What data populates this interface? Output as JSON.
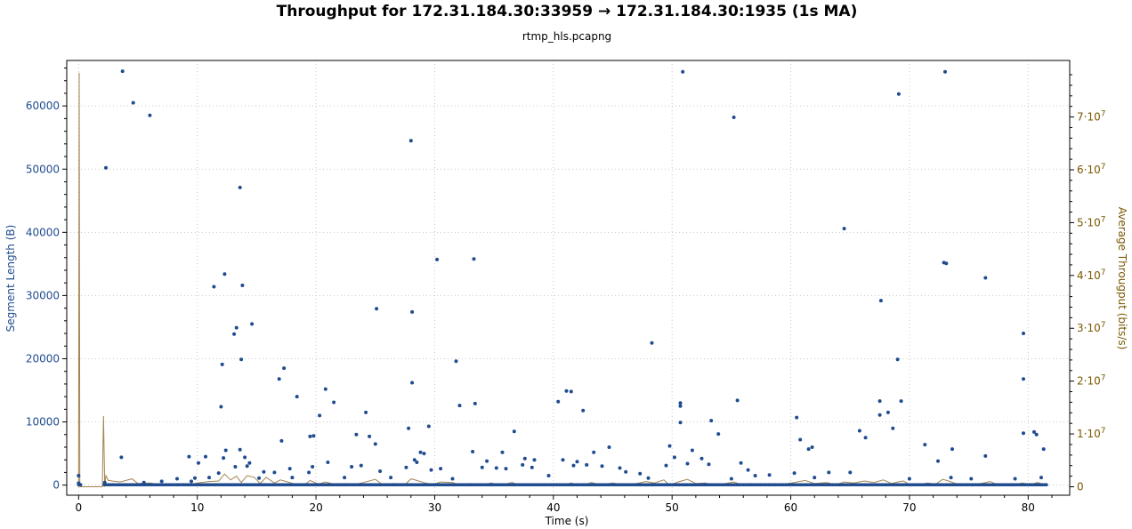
{
  "chart_data": {
    "type": "scatter",
    "title": "Throughput for 172.31.184.30:33959 → 172.31.184.30:1935 (1s MA)",
    "subtitle": "rtmp_hls.pcapng",
    "xlabel": "Time (s)",
    "ylabel": "Segment Length (B)",
    "y2label": "Average Througput (bits/s)",
    "xlim": [
      -1.0,
      83.5
    ],
    "ylim": [
      -1600,
      67200
    ],
    "y2lim": [
      -1600000,
      80700000
    ],
    "x_ticks": [
      0,
      10,
      20,
      30,
      40,
      50,
      60,
      70,
      80
    ],
    "x_tick_labels": [
      "0",
      "10",
      "20",
      "30",
      "40",
      "50",
      "60",
      "70",
      "80"
    ],
    "y_ticks": [
      0,
      10000,
      20000,
      30000,
      40000,
      50000,
      60000
    ],
    "y_tick_labels": [
      "0",
      "10000",
      "20000",
      "30000",
      "40000",
      "50000",
      "60000"
    ],
    "y2_ticks": [
      0,
      10000000,
      20000000,
      30000000,
      40000000,
      50000000,
      60000000,
      70000000
    ],
    "y2_tick_labels": [
      "0",
      "1·10",
      "2·10",
      "3·10",
      "4·10",
      "5·10",
      "6·10",
      "7·10"
    ],
    "y2_tick_exponent": "7",
    "grid": true,
    "colors": {
      "segments": "#1f4b8f",
      "throughput": "#a38450",
      "left_axis": "#1f4b8f",
      "right_axis": "#7a5800",
      "grid": "#c8c8c8"
    },
    "series": [
      {
        "points": [
          [
            0,
            1500
          ],
          [
            3.7,
            65500
          ],
          [
            4.6,
            60500
          ],
          [
            6.0,
            58500
          ],
          [
            2.3,
            50200
          ],
          [
            3.6,
            4400
          ],
          [
            9.3,
            4500
          ],
          [
            10.1,
            3500
          ],
          [
            10.7,
            4500
          ],
          [
            11.4,
            31400
          ],
          [
            12.1,
            19100
          ],
          [
            12.0,
            12400
          ],
          [
            12.3,
            33400
          ],
          [
            12.4,
            5500
          ],
          [
            12.2,
            4300
          ],
          [
            13.1,
            23900
          ],
          [
            13.3,
            24900
          ],
          [
            13.6,
            47100
          ],
          [
            13.7,
            19900
          ],
          [
            13.8,
            31600
          ],
          [
            13.6,
            5600
          ],
          [
            14.0,
            4400
          ],
          [
            14.2,
            3000
          ],
          [
            14.6,
            25500
          ],
          [
            14.4,
            3500
          ],
          [
            16.9,
            16800
          ],
          [
            17.3,
            18500
          ],
          [
            17.1,
            7000
          ],
          [
            18.4,
            14000
          ],
          [
            19.5,
            7700
          ],
          [
            19.8,
            7800
          ],
          [
            20.3,
            11000
          ],
          [
            20.8,
            15200
          ],
          [
            21.5,
            13100
          ],
          [
            23.4,
            8000
          ],
          [
            24.5,
            7700
          ],
          [
            24.2,
            11500
          ],
          [
            25.1,
            27900
          ],
          [
            25.0,
            6500
          ],
          [
            27.8,
            9000
          ],
          [
            28.0,
            54500
          ],
          [
            28.1,
            27400
          ],
          [
            28.1,
            16200
          ],
          [
            28.3,
            4000
          ],
          [
            29.1,
            5000
          ],
          [
            29.5,
            9300
          ],
          [
            30.2,
            35700
          ],
          [
            31.8,
            19600
          ],
          [
            32.1,
            12600
          ],
          [
            33.3,
            35800
          ],
          [
            33.4,
            12900
          ],
          [
            33.2,
            5300
          ],
          [
            34.4,
            3800
          ],
          [
            36.7,
            8500
          ],
          [
            37.6,
            4200
          ],
          [
            38.4,
            4000
          ],
          [
            40.4,
            13200
          ],
          [
            41.1,
            14900
          ],
          [
            41.5,
            14800
          ],
          [
            42.5,
            11800
          ],
          [
            43.4,
            5200
          ],
          [
            44.7,
            6000
          ],
          [
            48.3,
            22500
          ],
          [
            49.8,
            6200
          ],
          [
            50.7,
            13000
          ],
          [
            50.7,
            12500
          ],
          [
            50.7,
            9900
          ],
          [
            50.9,
            65400
          ],
          [
            51.7,
            5500
          ],
          [
            53.3,
            10200
          ],
          [
            53.9,
            8100
          ],
          [
            55.2,
            58200
          ],
          [
            55.5,
            13400
          ],
          [
            55.8,
            3500
          ],
          [
            60.5,
            10700
          ],
          [
            60.8,
            7200
          ],
          [
            61.5,
            5700
          ],
          [
            61.8,
            6000
          ],
          [
            64.5,
            40600
          ],
          [
            65.8,
            8600
          ],
          [
            66.3,
            7500
          ],
          [
            67.5,
            11100
          ],
          [
            67.6,
            29200
          ],
          [
            67.5,
            13300
          ],
          [
            68.2,
            11500
          ],
          [
            68.6,
            9000
          ],
          [
            69.1,
            61900
          ],
          [
            69.0,
            19900
          ],
          [
            69.3,
            13300
          ],
          [
            71.3,
            6400
          ],
          [
            72.9,
            35200
          ],
          [
            73.1,
            35100
          ],
          [
            73.0,
            65400
          ],
          [
            73.6,
            5700
          ],
          [
            76.4,
            32800
          ],
          [
            76.4,
            4600
          ],
          [
            79.6,
            24000
          ],
          [
            79.6,
            16800
          ],
          [
            79.6,
            8200
          ],
          [
            80.5,
            8400
          ],
          [
            80.7,
            8000
          ],
          [
            81.3,
            5700
          ],
          [
            81.1,
            1200
          ],
          [
            78.9,
            1000
          ],
          [
            75.2,
            1000
          ],
          [
            73.5,
            1200
          ],
          [
            72.4,
            3800
          ],
          [
            70.0,
            1000
          ],
          [
            65.0,
            2000
          ],
          [
            63.2,
            2000
          ],
          [
            62.0,
            1200
          ],
          [
            60.3,
            1900
          ],
          [
            58.2,
            1600
          ],
          [
            57.0,
            1500
          ],
          [
            56.4,
            2400
          ],
          [
            55.0,
            1000
          ],
          [
            53.1,
            3300
          ],
          [
            52.5,
            4200
          ],
          [
            51.3,
            3400
          ],
          [
            50.2,
            4400
          ],
          [
            49.5,
            3100
          ],
          [
            48.0,
            1100
          ],
          [
            47.3,
            1800
          ],
          [
            46.1,
            2100
          ],
          [
            45.6,
            2700
          ],
          [
            44.1,
            3000
          ],
          [
            42.8,
            3200
          ],
          [
            42.0,
            3700
          ],
          [
            41.7,
            3100
          ],
          [
            40.8,
            4000
          ],
          [
            39.6,
            1500
          ],
          [
            38.2,
            2800
          ],
          [
            37.4,
            3200
          ],
          [
            36.0,
            2600
          ],
          [
            35.7,
            5200
          ],
          [
            35.2,
            2700
          ],
          [
            34.0,
            2800
          ],
          [
            31.5,
            1000
          ],
          [
            30.5,
            2600
          ],
          [
            29.7,
            2400
          ],
          [
            28.8,
            5200
          ],
          [
            28.5,
            3600
          ],
          [
            27.6,
            2800
          ],
          [
            26.3,
            1200
          ],
          [
            25.4,
            2200
          ],
          [
            23.8,
            3100
          ],
          [
            23.0,
            2900
          ],
          [
            22.4,
            1200
          ],
          [
            21.0,
            3600
          ],
          [
            19.7,
            2900
          ],
          [
            19.4,
            2000
          ],
          [
            18.0,
            1200
          ],
          [
            17.8,
            2600
          ],
          [
            16.5,
            2000
          ],
          [
            15.6,
            2100
          ],
          [
            15.2,
            1100
          ],
          [
            13.2,
            2900
          ],
          [
            11.8,
            1900
          ],
          [
            11.0,
            1200
          ],
          [
            9.8,
            1100
          ],
          [
            9.5,
            600
          ],
          [
            8.3,
            1000
          ],
          [
            7.0,
            600
          ],
          [
            5.5,
            400
          ],
          [
            2.2,
            400
          ],
          [
            0.0,
            300
          ]
        ]
      },
      {
        "points": [
          [
            0.0,
            0
          ],
          [
            0.05,
            78400000
          ],
          [
            0.1,
            0
          ],
          [
            2.0,
            0
          ],
          [
            2.1,
            13400000
          ],
          [
            2.2,
            0
          ],
          [
            2.3,
            2100000
          ],
          [
            2.5,
            1200000
          ],
          [
            3.5,
            900000
          ],
          [
            4.5,
            1500000
          ],
          [
            5.0,
            600000
          ],
          [
            6.0,
            700000
          ],
          [
            7.0,
            300000
          ],
          [
            8.0,
            500000
          ],
          [
            9.0,
            200000
          ],
          [
            10.0,
            700000
          ],
          [
            11.0,
            1000000
          ],
          [
            11.8,
            1100000
          ],
          [
            12.3,
            2400000
          ],
          [
            12.8,
            1300000
          ],
          [
            13.3,
            2000000
          ],
          [
            13.7,
            800000
          ],
          [
            14.2,
            2100000
          ],
          [
            14.8,
            1800000
          ],
          [
            15.3,
            600000
          ],
          [
            15.8,
            1800000
          ],
          [
            16.5,
            700000
          ],
          [
            17.0,
            1300000
          ],
          [
            17.5,
            1000000
          ],
          [
            18.2,
            500000
          ],
          [
            19.0,
            300000
          ],
          [
            19.5,
            1200000
          ],
          [
            20.2,
            500000
          ],
          [
            20.8,
            900000
          ],
          [
            21.5,
            500000
          ],
          [
            22.5,
            600000
          ],
          [
            23.0,
            300000
          ],
          [
            24.0,
            800000
          ],
          [
            25.0,
            1400000
          ],
          [
            25.6,
            400000
          ],
          [
            26.5,
            600000
          ],
          [
            27.5,
            400000
          ],
          [
            28.0,
            1500000
          ],
          [
            28.5,
            1200000
          ],
          [
            29.2,
            700000
          ],
          [
            29.8,
            400000
          ],
          [
            30.5,
            900000
          ],
          [
            31.5,
            800000
          ],
          [
            32.0,
            400000
          ],
          [
            33.0,
            600000
          ],
          [
            33.8,
            300000
          ],
          [
            34.8,
            700000
          ],
          [
            35.5,
            200000
          ],
          [
            36.5,
            800000
          ],
          [
            37.2,
            300000
          ],
          [
            38.0,
            400000
          ],
          [
            39.0,
            200000
          ],
          [
            40.0,
            600000
          ],
          [
            40.8,
            300000
          ],
          [
            41.5,
            700000
          ],
          [
            42.4,
            200000
          ],
          [
            43.2,
            800000
          ],
          [
            44.0,
            300000
          ],
          [
            45.0,
            700000
          ],
          [
            46.0,
            300000
          ],
          [
            47.0,
            600000
          ],
          [
            47.8,
            1000000
          ],
          [
            48.5,
            700000
          ],
          [
            49.3,
            1300000
          ],
          [
            49.8,
            300000
          ],
          [
            50.5,
            900000
          ],
          [
            51.3,
            1400000
          ],
          [
            52.0,
            600000
          ],
          [
            52.8,
            700000
          ],
          [
            53.5,
            300000
          ],
          [
            54.5,
            600000
          ],
          [
            55.2,
            900000
          ],
          [
            55.8,
            400000
          ],
          [
            56.6,
            600000
          ],
          [
            57.5,
            300000
          ],
          [
            58.5,
            400000
          ],
          [
            59.5,
            500000
          ],
          [
            60.3,
            800000
          ],
          [
            61.2,
            1200000
          ],
          [
            62.0,
            600000
          ],
          [
            63.0,
            800000
          ],
          [
            63.8,
            400000
          ],
          [
            64.5,
            900000
          ],
          [
            65.3,
            700000
          ],
          [
            66.2,
            1100000
          ],
          [
            67.0,
            800000
          ],
          [
            67.8,
            1300000
          ],
          [
            68.5,
            600000
          ],
          [
            69.0,
            900000
          ],
          [
            69.5,
            1100000
          ],
          [
            70.0,
            400000
          ],
          [
            70.8,
            300000
          ],
          [
            71.5,
            700000
          ],
          [
            72.2,
            500000
          ],
          [
            72.8,
            1400000
          ],
          [
            73.3,
            1100000
          ],
          [
            74.0,
            500000
          ],
          [
            75.0,
            400000
          ],
          [
            76.0,
            600000
          ],
          [
            76.8,
            1000000
          ],
          [
            77.5,
            300000
          ],
          [
            78.5,
            200000
          ],
          [
            79.5,
            700000
          ],
          [
            80.2,
            400000
          ],
          [
            80.8,
            800000
          ],
          [
            81.5,
            300000
          ]
        ]
      }
    ]
  }
}
